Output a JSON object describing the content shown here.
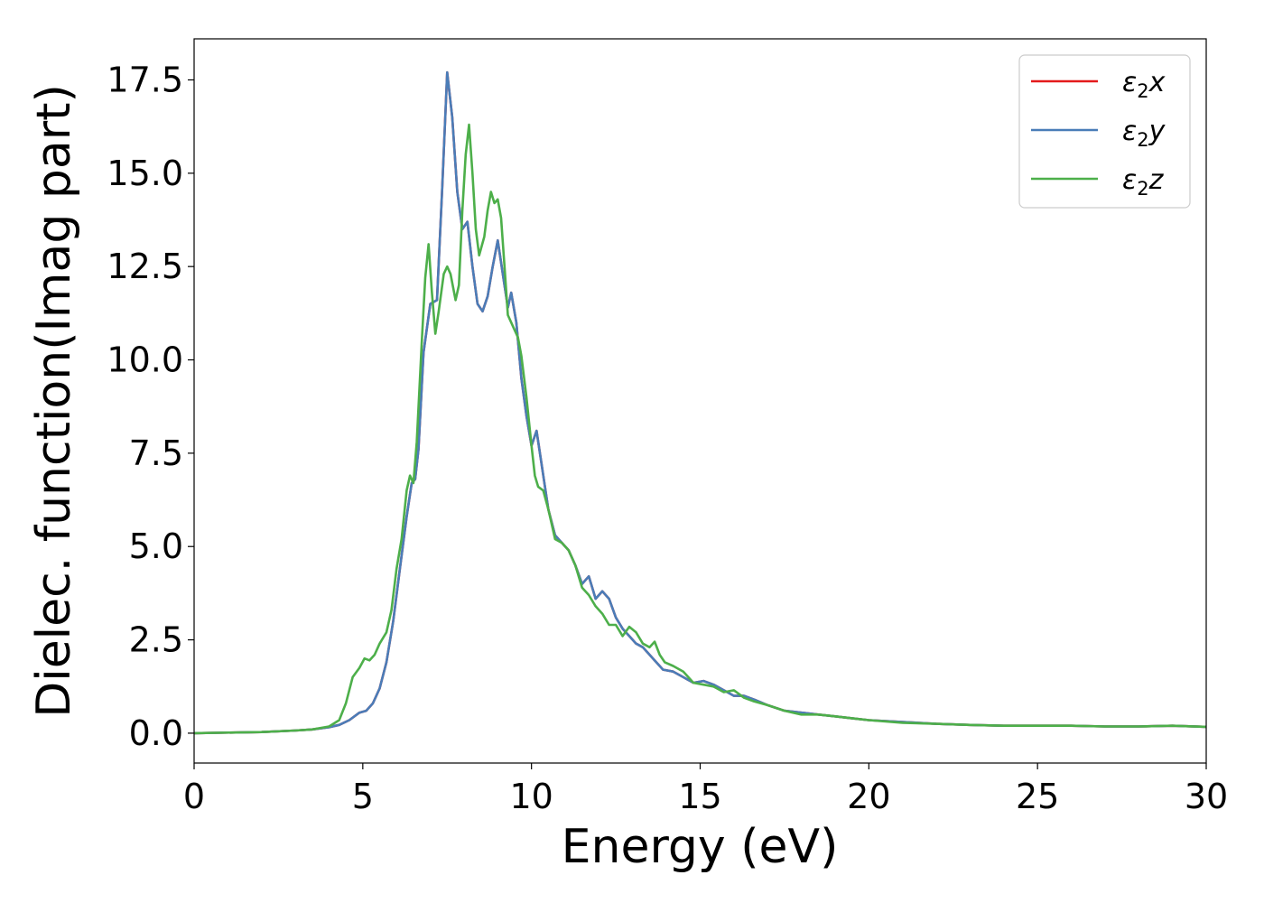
{
  "chart_data": {
    "type": "line",
    "title": "",
    "xlabel": "Energy (eV)",
    "ylabel": "Dielec. function(Imag part)",
    "xlim": [
      0,
      30
    ],
    "ylim": [
      -0.8,
      18.6
    ],
    "xticks": [
      0,
      5,
      10,
      15,
      20,
      25,
      30
    ],
    "xtick_labels": [
      "0",
      "5",
      "10",
      "15",
      "20",
      "25",
      "30"
    ],
    "yticks": [
      0.0,
      2.5,
      5.0,
      7.5,
      10.0,
      12.5,
      15.0,
      17.5
    ],
    "ytick_labels": [
      "0.0",
      "2.5",
      "5.0",
      "7.5",
      "10.0",
      "12.5",
      "15.0",
      "17.5"
    ],
    "grid": false,
    "legend_position": "top-right",
    "series": [
      {
        "name": "ε2x",
        "legend_main": "ε",
        "legend_sub": "2",
        "legend_suffix": "x",
        "color": "#e41a1c",
        "points": [
          [
            0,
            0
          ],
          [
            2,
            0.03
          ],
          [
            3,
            0.07
          ],
          [
            3.5,
            0.1
          ],
          [
            4,
            0.16
          ],
          [
            4.3,
            0.22
          ],
          [
            4.6,
            0.35
          ],
          [
            4.9,
            0.55
          ],
          [
            5.1,
            0.6
          ],
          [
            5.3,
            0.8
          ],
          [
            5.5,
            1.2
          ],
          [
            5.7,
            1.9
          ],
          [
            5.9,
            3.0
          ],
          [
            6.1,
            4.4
          ],
          [
            6.3,
            5.8
          ],
          [
            6.45,
            6.7
          ],
          [
            6.55,
            6.8
          ],
          [
            6.65,
            7.6
          ],
          [
            6.8,
            10.2
          ],
          [
            7.0,
            11.5
          ],
          [
            7.2,
            11.6
          ],
          [
            7.35,
            14.5
          ],
          [
            7.5,
            17.7
          ],
          [
            7.65,
            16.5
          ],
          [
            7.8,
            14.5
          ],
          [
            7.95,
            13.5
          ],
          [
            8.1,
            13.7
          ],
          [
            8.25,
            12.5
          ],
          [
            8.4,
            11.5
          ],
          [
            8.55,
            11.3
          ],
          [
            8.7,
            11.7
          ],
          [
            8.85,
            12.5
          ],
          [
            9.0,
            13.2
          ],
          [
            9.15,
            12.3
          ],
          [
            9.3,
            11.4
          ],
          [
            9.4,
            11.8
          ],
          [
            9.55,
            11.0
          ],
          [
            9.7,
            9.5
          ],
          [
            9.85,
            8.5
          ],
          [
            10.0,
            7.7
          ],
          [
            10.15,
            8.1
          ],
          [
            10.3,
            7.2
          ],
          [
            10.5,
            6.0
          ],
          [
            10.7,
            5.3
          ],
          [
            10.9,
            5.1
          ],
          [
            11.1,
            4.9
          ],
          [
            11.3,
            4.5
          ],
          [
            11.5,
            4.0
          ],
          [
            11.7,
            4.2
          ],
          [
            11.9,
            3.6
          ],
          [
            12.1,
            3.8
          ],
          [
            12.3,
            3.6
          ],
          [
            12.5,
            3.1
          ],
          [
            12.7,
            2.8
          ],
          [
            12.9,
            2.6
          ],
          [
            13.1,
            2.4
          ],
          [
            13.3,
            2.3
          ],
          [
            13.5,
            2.1
          ],
          [
            13.7,
            1.9
          ],
          [
            13.9,
            1.7
          ],
          [
            14.2,
            1.65
          ],
          [
            14.5,
            1.5
          ],
          [
            14.8,
            1.35
          ],
          [
            15.1,
            1.4
          ],
          [
            15.4,
            1.3
          ],
          [
            15.7,
            1.15
          ],
          [
            16.0,
            1.0
          ],
          [
            16.3,
            1.0
          ],
          [
            16.6,
            0.9
          ],
          [
            17.0,
            0.75
          ],
          [
            17.5,
            0.6
          ],
          [
            18.0,
            0.55
          ],
          [
            18.5,
            0.5
          ],
          [
            19.0,
            0.45
          ],
          [
            19.5,
            0.4
          ],
          [
            20.0,
            0.35
          ],
          [
            21.0,
            0.3
          ],
          [
            22.0,
            0.25
          ],
          [
            23.0,
            0.22
          ],
          [
            24.0,
            0.2
          ],
          [
            25.0,
            0.2
          ],
          [
            26.0,
            0.2
          ],
          [
            27.0,
            0.18
          ],
          [
            28.0,
            0.18
          ],
          [
            29.0,
            0.2
          ],
          [
            30.0,
            0.17
          ]
        ]
      },
      {
        "name": "ε2y",
        "legend_main": "ε",
        "legend_sub": "2",
        "legend_suffix": "y",
        "color": "#4a7db8",
        "points": [
          [
            0,
            0
          ],
          [
            2,
            0.03
          ],
          [
            3,
            0.07
          ],
          [
            3.5,
            0.1
          ],
          [
            4,
            0.16
          ],
          [
            4.3,
            0.22
          ],
          [
            4.6,
            0.35
          ],
          [
            4.9,
            0.55
          ],
          [
            5.1,
            0.6
          ],
          [
            5.3,
            0.8
          ],
          [
            5.5,
            1.2
          ],
          [
            5.7,
            1.9
          ],
          [
            5.9,
            3.0
          ],
          [
            6.1,
            4.4
          ],
          [
            6.3,
            5.8
          ],
          [
            6.45,
            6.7
          ],
          [
            6.55,
            6.8
          ],
          [
            6.65,
            7.6
          ],
          [
            6.8,
            10.2
          ],
          [
            7.0,
            11.5
          ],
          [
            7.2,
            11.6
          ],
          [
            7.35,
            14.5
          ],
          [
            7.5,
            17.7
          ],
          [
            7.65,
            16.5
          ],
          [
            7.8,
            14.5
          ],
          [
            7.95,
            13.5
          ],
          [
            8.1,
            13.7
          ],
          [
            8.25,
            12.5
          ],
          [
            8.4,
            11.5
          ],
          [
            8.55,
            11.3
          ],
          [
            8.7,
            11.7
          ],
          [
            8.85,
            12.5
          ],
          [
            9.0,
            13.2
          ],
          [
            9.15,
            12.3
          ],
          [
            9.3,
            11.4
          ],
          [
            9.4,
            11.8
          ],
          [
            9.55,
            11.0
          ],
          [
            9.7,
            9.5
          ],
          [
            9.85,
            8.5
          ],
          [
            10.0,
            7.7
          ],
          [
            10.15,
            8.1
          ],
          [
            10.3,
            7.2
          ],
          [
            10.5,
            6.0
          ],
          [
            10.7,
            5.3
          ],
          [
            10.9,
            5.1
          ],
          [
            11.1,
            4.9
          ],
          [
            11.3,
            4.5
          ],
          [
            11.5,
            4.0
          ],
          [
            11.7,
            4.2
          ],
          [
            11.9,
            3.6
          ],
          [
            12.1,
            3.8
          ],
          [
            12.3,
            3.6
          ],
          [
            12.5,
            3.1
          ],
          [
            12.7,
            2.8
          ],
          [
            12.9,
            2.6
          ],
          [
            13.1,
            2.4
          ],
          [
            13.3,
            2.3
          ],
          [
            13.5,
            2.1
          ],
          [
            13.7,
            1.9
          ],
          [
            13.9,
            1.7
          ],
          [
            14.2,
            1.65
          ],
          [
            14.5,
            1.5
          ],
          [
            14.8,
            1.35
          ],
          [
            15.1,
            1.4
          ],
          [
            15.4,
            1.3
          ],
          [
            15.7,
            1.15
          ],
          [
            16.0,
            1.0
          ],
          [
            16.3,
            1.0
          ],
          [
            16.6,
            0.9
          ],
          [
            17.0,
            0.75
          ],
          [
            17.5,
            0.6
          ],
          [
            18.0,
            0.55
          ],
          [
            18.5,
            0.5
          ],
          [
            19.0,
            0.45
          ],
          [
            19.5,
            0.4
          ],
          [
            20.0,
            0.35
          ],
          [
            21.0,
            0.3
          ],
          [
            22.0,
            0.25
          ],
          [
            23.0,
            0.22
          ],
          [
            24.0,
            0.2
          ],
          [
            25.0,
            0.2
          ],
          [
            26.0,
            0.2
          ],
          [
            27.0,
            0.18
          ],
          [
            28.0,
            0.18
          ],
          [
            29.0,
            0.2
          ],
          [
            30.0,
            0.17
          ]
        ]
      },
      {
        "name": "ε2z",
        "legend_main": "ε",
        "legend_sub": "2",
        "legend_suffix": "z",
        "color": "#4daf4a",
        "points": [
          [
            0,
            0
          ],
          [
            2,
            0.03
          ],
          [
            3,
            0.07
          ],
          [
            3.5,
            0.1
          ],
          [
            4,
            0.18
          ],
          [
            4.3,
            0.35
          ],
          [
            4.5,
            0.8
          ],
          [
            4.7,
            1.5
          ],
          [
            4.9,
            1.75
          ],
          [
            5.05,
            2.0
          ],
          [
            5.2,
            1.95
          ],
          [
            5.35,
            2.1
          ],
          [
            5.5,
            2.4
          ],
          [
            5.7,
            2.7
          ],
          [
            5.85,
            3.3
          ],
          [
            6.0,
            4.4
          ],
          [
            6.15,
            5.2
          ],
          [
            6.3,
            6.5
          ],
          [
            6.4,
            6.9
          ],
          [
            6.5,
            6.7
          ],
          [
            6.6,
            7.8
          ],
          [
            6.75,
            10.5
          ],
          [
            6.85,
            12.2
          ],
          [
            6.95,
            13.1
          ],
          [
            7.05,
            11.8
          ],
          [
            7.15,
            10.7
          ],
          [
            7.25,
            11.3
          ],
          [
            7.4,
            12.3
          ],
          [
            7.5,
            12.5
          ],
          [
            7.6,
            12.3
          ],
          [
            7.75,
            11.6
          ],
          [
            7.85,
            12.0
          ],
          [
            7.95,
            14.0
          ],
          [
            8.05,
            15.5
          ],
          [
            8.15,
            16.3
          ],
          [
            8.25,
            15.0
          ],
          [
            8.35,
            13.5
          ],
          [
            8.45,
            12.8
          ],
          [
            8.6,
            13.3
          ],
          [
            8.7,
            14.0
          ],
          [
            8.8,
            14.5
          ],
          [
            8.9,
            14.2
          ],
          [
            9.0,
            14.3
          ],
          [
            9.1,
            13.8
          ],
          [
            9.2,
            12.5
          ],
          [
            9.3,
            11.2
          ],
          [
            9.45,
            10.9
          ],
          [
            9.6,
            10.6
          ],
          [
            9.7,
            10.1
          ],
          [
            9.85,
            9.0
          ],
          [
            10.0,
            7.7
          ],
          [
            10.1,
            6.9
          ],
          [
            10.2,
            6.6
          ],
          [
            10.35,
            6.5
          ],
          [
            10.5,
            6.0
          ],
          [
            10.7,
            5.2
          ],
          [
            10.9,
            5.1
          ],
          [
            11.1,
            4.9
          ],
          [
            11.3,
            4.5
          ],
          [
            11.5,
            3.9
          ],
          [
            11.7,
            3.7
          ],
          [
            11.9,
            3.4
          ],
          [
            12.1,
            3.2
          ],
          [
            12.3,
            2.9
          ],
          [
            12.5,
            2.9
          ],
          [
            12.7,
            2.6
          ],
          [
            12.9,
            2.85
          ],
          [
            13.1,
            2.7
          ],
          [
            13.3,
            2.4
          ],
          [
            13.5,
            2.3
          ],
          [
            13.65,
            2.45
          ],
          [
            13.8,
            2.1
          ],
          [
            13.95,
            1.9
          ],
          [
            14.2,
            1.8
          ],
          [
            14.5,
            1.65
          ],
          [
            14.8,
            1.35
          ],
          [
            15.1,
            1.3
          ],
          [
            15.4,
            1.25
          ],
          [
            15.7,
            1.1
          ],
          [
            16.0,
            1.15
          ],
          [
            16.3,
            0.95
          ],
          [
            16.6,
            0.85
          ],
          [
            17.0,
            0.75
          ],
          [
            17.5,
            0.6
          ],
          [
            18.0,
            0.5
          ],
          [
            18.5,
            0.5
          ],
          [
            19.0,
            0.45
          ],
          [
            19.5,
            0.4
          ],
          [
            20.0,
            0.35
          ],
          [
            21.0,
            0.28
          ],
          [
            22.0,
            0.25
          ],
          [
            23.0,
            0.22
          ],
          [
            24.0,
            0.2
          ],
          [
            25.0,
            0.2
          ],
          [
            26.0,
            0.2
          ],
          [
            27.0,
            0.18
          ],
          [
            28.0,
            0.18
          ],
          [
            29.0,
            0.2
          ],
          [
            30.0,
            0.17
          ]
        ]
      }
    ]
  }
}
